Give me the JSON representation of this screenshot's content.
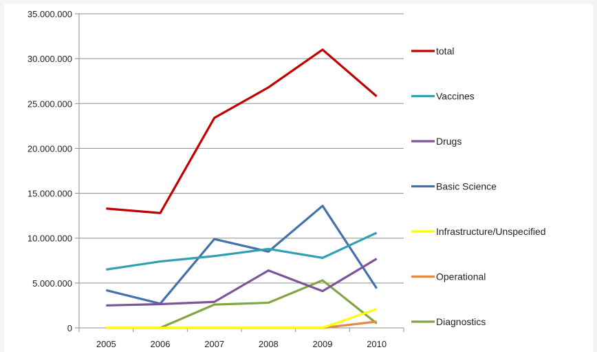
{
  "chart_data": {
    "type": "line",
    "x": [
      "2005",
      "2006",
      "2007",
      "2008",
      "2009",
      "2010"
    ],
    "ylim": [
      0,
      35000000
    ],
    "yticks": [
      0,
      5000000,
      10000000,
      15000000,
      20000000,
      25000000,
      30000000,
      35000000
    ],
    "ytick_labels": [
      "0",
      "5.000.000",
      "10.000.000",
      "15.000.000",
      "20.000.000",
      "25.000.000",
      "30.000.000",
      "35.000.000"
    ],
    "grid": "horizontal",
    "legend_position": "right",
    "series": [
      {
        "name": "total",
        "color": "#c00000",
        "values": [
          13300000,
          12800000,
          23400000,
          26800000,
          31000000,
          25800000
        ]
      },
      {
        "name": "Vaccines",
        "color": "#31a0b3",
        "values": [
          6500000,
          7400000,
          8000000,
          8800000,
          7800000,
          10600000
        ]
      },
      {
        "name": "Drugs",
        "color": "#7d5596",
        "values": [
          2500000,
          2650000,
          2900000,
          6400000,
          4100000,
          7700000
        ]
      },
      {
        "name": "Basic Science",
        "color": "#4471a8",
        "values": [
          4200000,
          2700000,
          9900000,
          8500000,
          13600000,
          4400000
        ]
      },
      {
        "name": "Infrastructure/Unspecified",
        "color": "#ffff00",
        "values": [
          0,
          0,
          0,
          0,
          0,
          2100000
        ]
      },
      {
        "name": "Operational",
        "color": "#e38a45",
        "values": [
          0,
          0,
          0,
          0,
          0,
          700000
        ]
      },
      {
        "name": "Diagnostics",
        "color": "#84a444",
        "values": [
          null,
          0,
          2600000,
          2800000,
          5300000,
          500000
        ]
      }
    ]
  }
}
